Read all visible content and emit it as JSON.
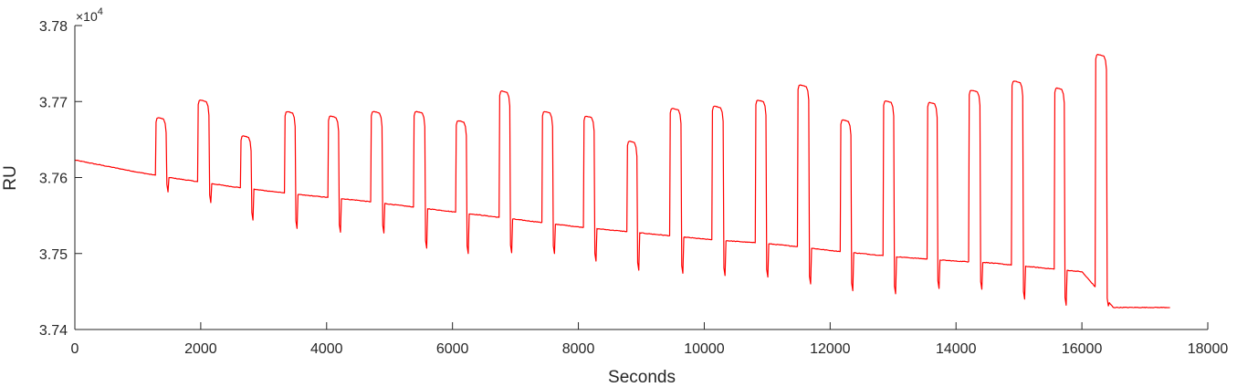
{
  "chart_data": {
    "type": "line",
    "title": "",
    "xlabel": "Seconds",
    "ylabel": "RU",
    "y_multiplier_label": "×10",
    "y_multiplier_exponent": "4",
    "xlim": [
      0,
      18000
    ],
    "ylim": [
      3.74,
      3.78
    ],
    "x_ticks": [
      0,
      2000,
      4000,
      6000,
      8000,
      10000,
      12000,
      14000,
      16000,
      18000
    ],
    "x_tick_labels": [
      "0",
      "2000",
      "4000",
      "6000",
      "8000",
      "10000",
      "12000",
      "14000",
      "16000",
      "18000"
    ],
    "y_ticks": [
      3.74,
      3.75,
      3.76,
      3.77,
      3.78
    ],
    "y_tick_labels": [
      "3.74",
      "3.75",
      "3.76",
      "3.77",
      "3.78"
    ],
    "grid": false,
    "line_color": "#ff0000",
    "series": [
      {
        "x": [
          0,
          500,
          1000,
          1500,
          2000,
          2500,
          3000,
          3500,
          4000,
          4500,
          5000,
          5500,
          6000,
          6500,
          7000,
          7500,
          8000,
          8500,
          9000,
          9500,
          10000,
          10500,
          11000,
          11500,
          12000,
          12500,
          13000,
          13500,
          14000,
          14500,
          15000,
          15500,
          16000,
          16500,
          17000,
          17400
        ],
        "baseline": [
          3.7623,
          3.7615,
          3.7607,
          3.76,
          3.7594,
          3.7588,
          3.7583,
          3.7578,
          3.7574,
          3.757,
          3.7565,
          3.756,
          3.7555,
          3.755,
          3.7545,
          3.754,
          3.7535,
          3.7531,
          3.7527,
          3.7523,
          3.7519,
          3.7516,
          3.7513,
          3.7509,
          3.7504,
          3.75,
          3.7496,
          3.7493,
          3.749,
          3.7488,
          3.7484,
          3.748,
          3.7476,
          3.7429,
          3.7429,
          3.7429
        ]
      }
    ],
    "injections": [
      {
        "start": 1280,
        "end": 1450,
        "peak": 3.7679,
        "after": 3.7579
      },
      {
        "start": 1950,
        "end": 2130,
        "peak": 3.7702,
        "after": 3.7565
      },
      {
        "start": 2630,
        "end": 2800,
        "peak": 3.7655,
        "after": 3.7542
      },
      {
        "start": 3330,
        "end": 3500,
        "peak": 3.7687,
        "after": 3.7531
      },
      {
        "start": 4020,
        "end": 4190,
        "peak": 3.7681,
        "after": 3.7526
      },
      {
        "start": 4700,
        "end": 4880,
        "peak": 3.7687,
        "after": 3.7525
      },
      {
        "start": 5380,
        "end": 5560,
        "peak": 3.7687,
        "after": 3.7505
      },
      {
        "start": 6050,
        "end": 6220,
        "peak": 3.7675,
        "after": 3.7498
      },
      {
        "start": 6740,
        "end": 6910,
        "peak": 3.7714,
        "after": 3.7499
      },
      {
        "start": 7420,
        "end": 7590,
        "peak": 3.7687,
        "after": 3.7498
      },
      {
        "start": 8080,
        "end": 8250,
        "peak": 3.7681,
        "after": 3.7488
      },
      {
        "start": 8770,
        "end": 8930,
        "peak": 3.7648,
        "after": 3.7476
      },
      {
        "start": 9450,
        "end": 9630,
        "peak": 3.7691,
        "after": 3.7472
      },
      {
        "start": 10120,
        "end": 10300,
        "peak": 3.7694,
        "after": 3.7469
      },
      {
        "start": 10810,
        "end": 10980,
        "peak": 3.7702,
        "after": 3.7467
      },
      {
        "start": 11480,
        "end": 11660,
        "peak": 3.7722,
        "after": 3.7458
      },
      {
        "start": 12160,
        "end": 12330,
        "peak": 3.7676,
        "after": 3.7449
      },
      {
        "start": 12840,
        "end": 13010,
        "peak": 3.7701,
        "after": 3.7445
      },
      {
        "start": 13540,
        "end": 13700,
        "peak": 3.7699,
        "after": 3.7452
      },
      {
        "start": 14200,
        "end": 14380,
        "peak": 3.7715,
        "after": 3.7451
      },
      {
        "start": 14880,
        "end": 15060,
        "peak": 3.7727,
        "after": 3.7438
      },
      {
        "start": 15560,
        "end": 15720,
        "peak": 3.7718,
        "after": 3.743
      },
      {
        "start": 16210,
        "end": 16390,
        "peak": 3.7762,
        "after": 3.7429
      }
    ]
  }
}
